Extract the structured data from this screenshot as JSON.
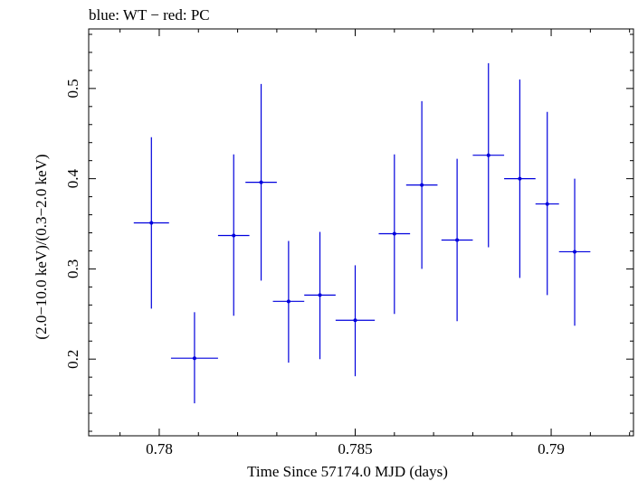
{
  "figure_title": "blue: WT − red: PC",
  "chart_data": {
    "type": "scatter",
    "title": "blue: WT − red: PC",
    "xlabel": "Time Since 57174.0 MJD (days)",
    "ylabel": "(2.0−10.0 keV)/(0.3−2.0 keV)",
    "xlim": [
      0.7782,
      0.7921
    ],
    "ylim": [
      0.115,
      0.566
    ],
    "x_ticks": [
      0.78,
      0.785,
      0.79
    ],
    "x_tick_labels": [
      "0.78",
      "0.785",
      "0.79"
    ],
    "y_ticks": [
      0.2,
      0.3,
      0.4,
      0.5
    ],
    "y_tick_labels": [
      "0.2",
      "0.3",
      "0.4",
      "0.5"
    ],
    "x_minor_step": 0.001,
    "y_minor_step": 0.02,
    "grid": false,
    "color": "#0000dd",
    "series": [
      {
        "x": [
          0.7798,
          0.7809,
          0.7819,
          0.7826,
          0.7833,
          0.7841,
          0.785,
          0.786,
          0.7867,
          0.7876,
          0.7884,
          0.7892,
          0.7899,
          0.7906
        ],
        "x_err": [
          0.00045,
          0.0006,
          0.0004,
          0.0004,
          0.0004,
          0.0004,
          0.0005,
          0.0004,
          0.0004,
          0.0004,
          0.0004,
          0.0004,
          0.0003,
          0.0004
        ],
        "y": [
          0.351,
          0.201,
          0.337,
          0.396,
          0.264,
          0.271,
          0.243,
          0.339,
          0.393,
          0.332,
          0.426,
          0.4,
          0.372,
          0.319
        ],
        "y_err_low": [
          0.095,
          0.05,
          0.089,
          0.109,
          0.068,
          0.071,
          0.062,
          0.089,
          0.093,
          0.09,
          0.102,
          0.11,
          0.101,
          0.082
        ],
        "y_err_high": [
          0.095,
          0.051,
          0.09,
          0.109,
          0.067,
          0.07,
          0.061,
          0.088,
          0.093,
          0.09,
          0.102,
          0.11,
          0.102,
          0.081
        ]
      }
    ]
  }
}
